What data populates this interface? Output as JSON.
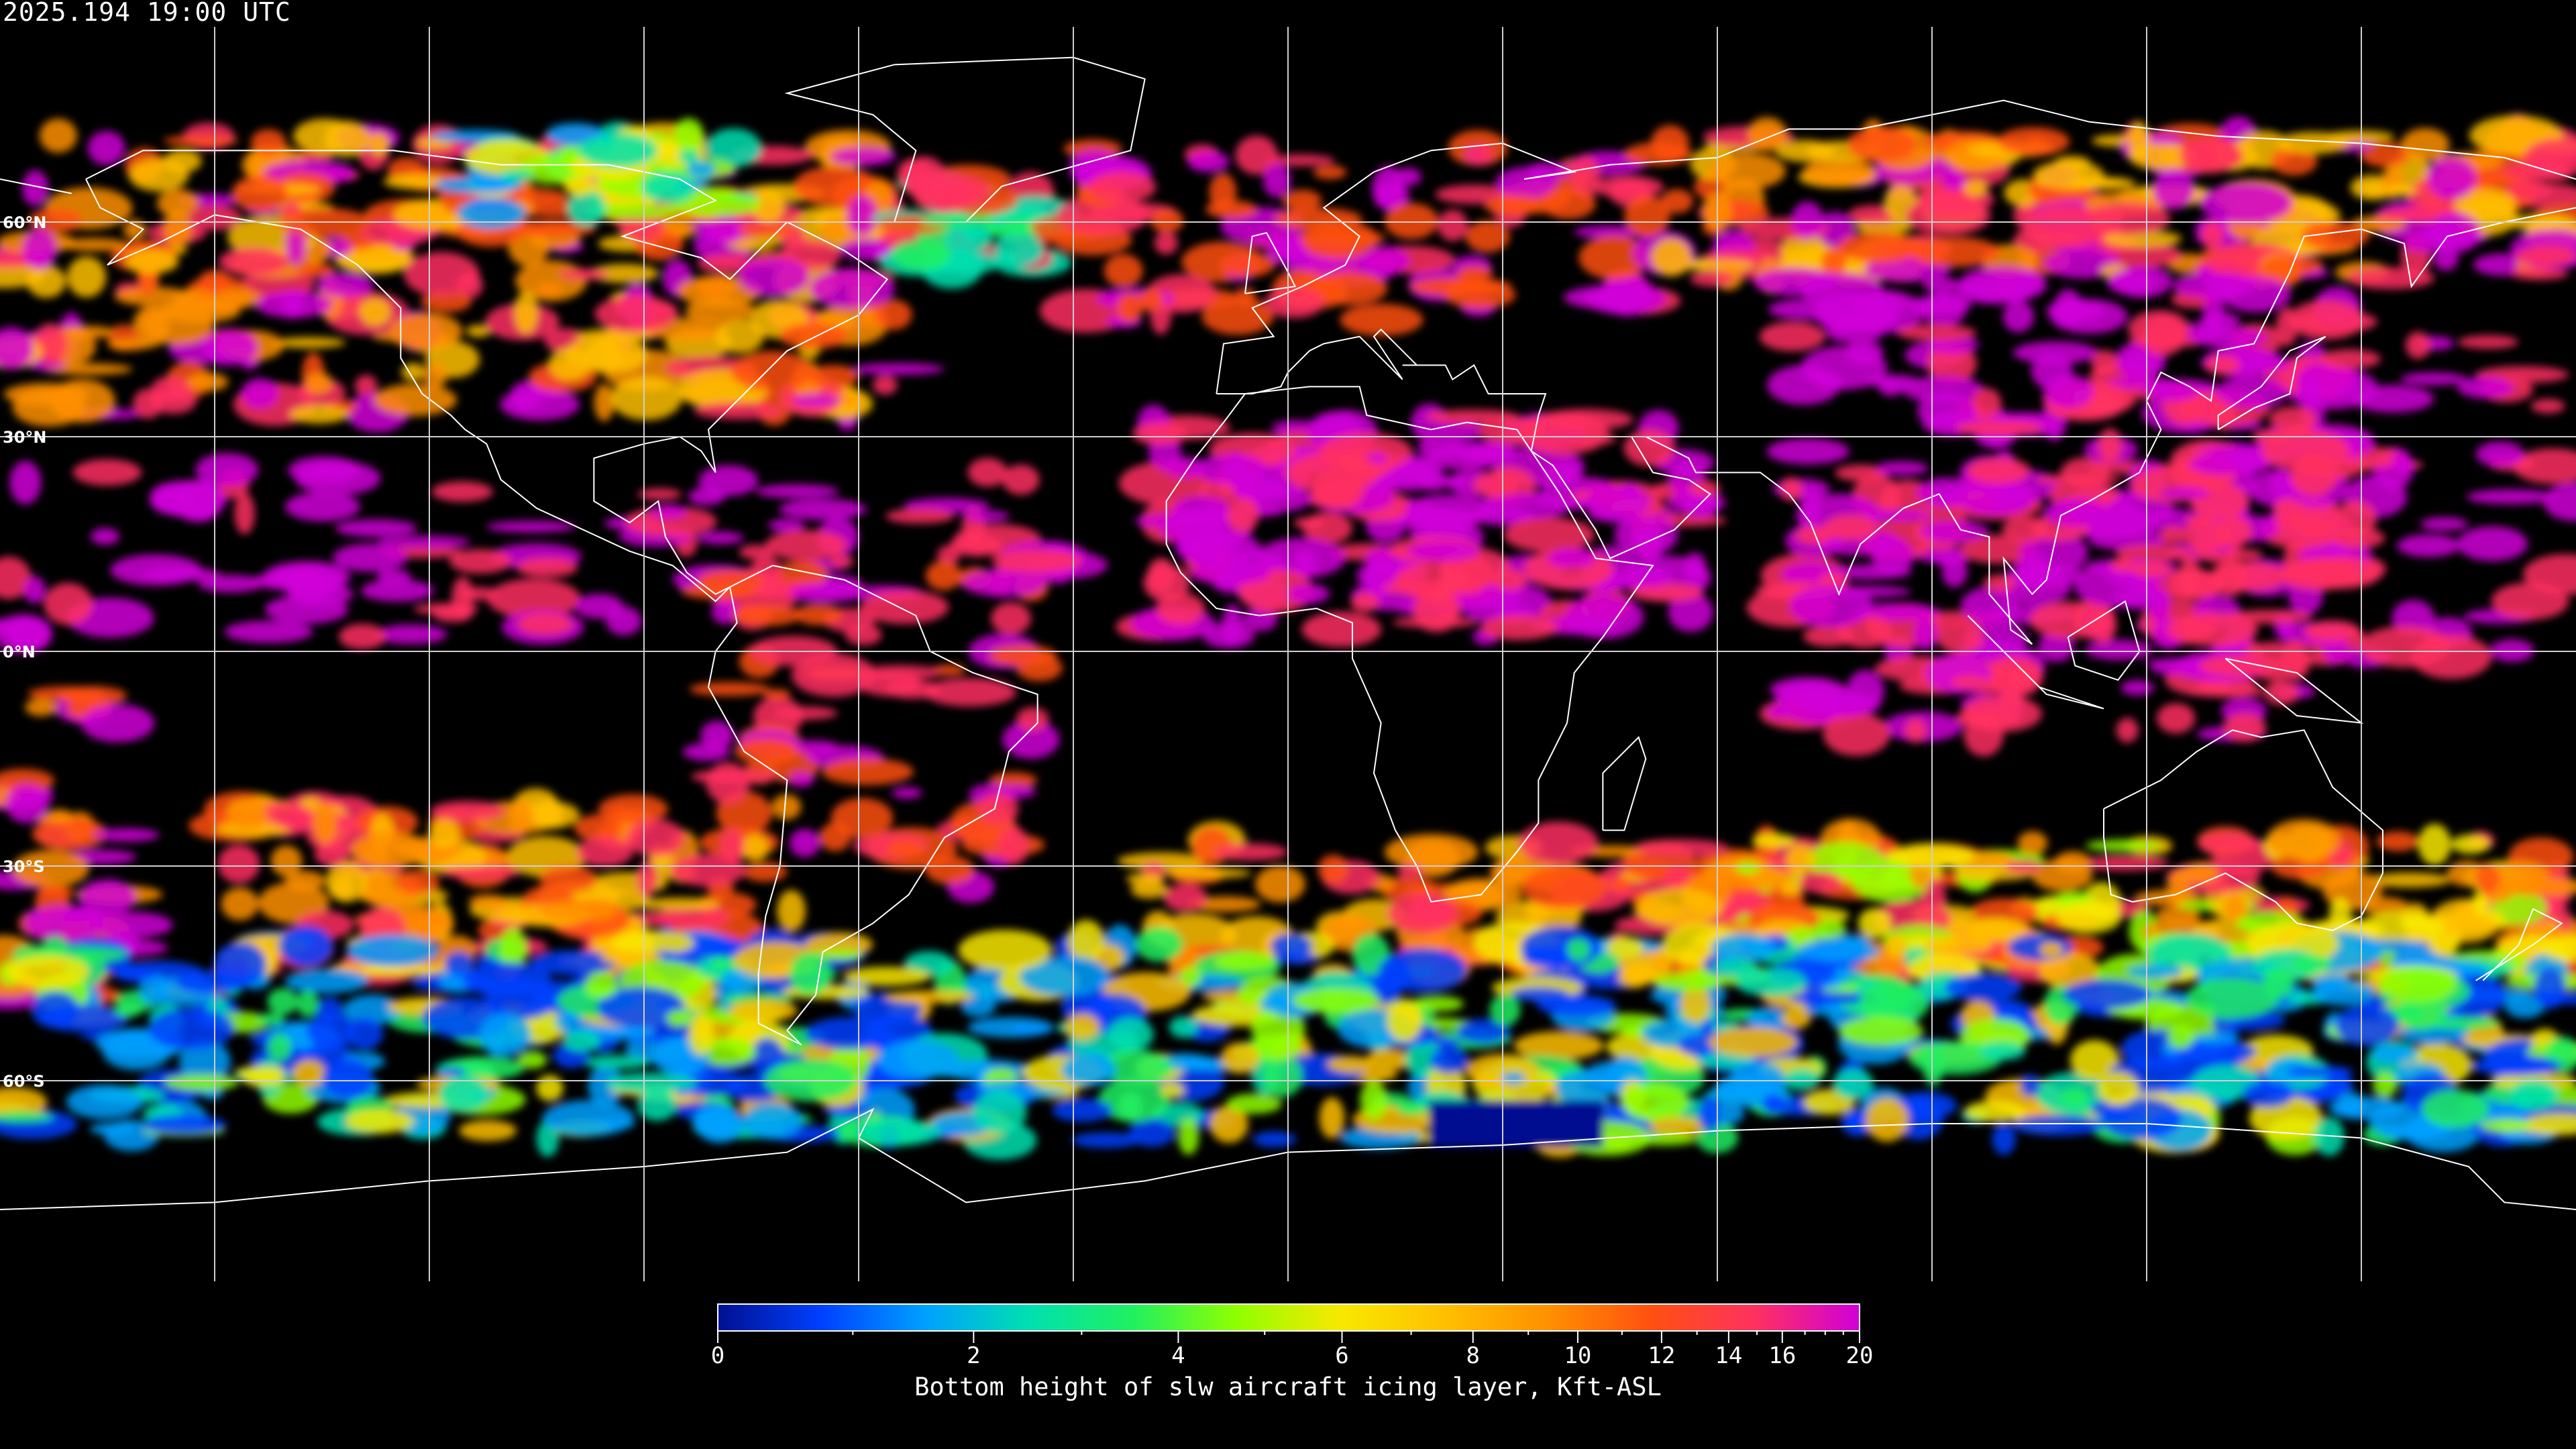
{
  "header": {
    "timestamp": "2025.194 19:00 UTC"
  },
  "map": {
    "projection": "equirectangular",
    "background": "#000000",
    "graticule_color": "#d0d0d0",
    "coastline_color": "#ffffff",
    "grid_lon_step_deg": 30,
    "lat_labels": [
      "60°N",
      "30°N",
      "0°N",
      "30°S",
      "60°S"
    ],
    "lat_values": [
      60,
      30,
      0,
      -30,
      -60
    ]
  },
  "colorbar": {
    "title": "Bottom height of slw aircraft icing layer, Kft-ASL",
    "range": [
      0,
      20
    ],
    "tick_labels": [
      "0",
      "2",
      "4",
      "6",
      "8",
      "10",
      "12",
      "14",
      "16",
      "20"
    ],
    "tick_values": [
      0,
      2,
      4,
      6,
      8,
      10,
      12,
      14,
      16,
      20
    ],
    "minor_ticks": [
      1,
      3,
      5,
      7,
      9,
      11,
      13,
      15,
      17,
      18,
      19
    ],
    "colors": [
      "#001090",
      "#0040ff",
      "#00a0ff",
      "#00e0b0",
      "#20f060",
      "#90ff00",
      "#f8e800",
      "#ffc000",
      "#ff9000",
      "#ff5010",
      "#ff3060",
      "#d000d8"
    ]
  }
}
